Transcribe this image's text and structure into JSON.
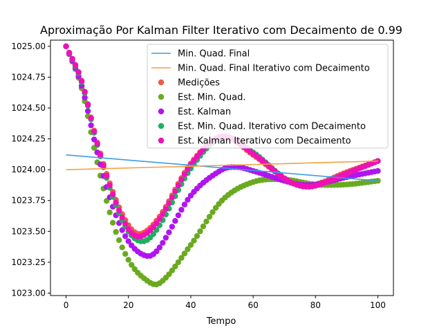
{
  "chart_data": {
    "type": "scatter",
    "title": "Aproximação Por Kalman Filter Iterativo com Decaimento de 0.99",
    "xlabel": "Tempo",
    "ylabel": "",
    "xlim": [
      -5,
      105
    ],
    "ylim": [
      1022.98,
      1025.05
    ],
    "xticks": [
      0,
      20,
      40,
      60,
      80,
      100
    ],
    "yticks": [
      1023.0,
      1023.25,
      1023.5,
      1023.75,
      1024.0,
      1024.25,
      1024.5,
      1024.75,
      1025.0
    ],
    "ytick_labels": [
      "1023.00",
      "1023.25",
      "1023.50",
      "1023.75",
      "1024.00",
      "1024.25",
      "1024.50",
      "1024.75",
      "1025.00"
    ],
    "grid": false,
    "legend_position": "upper right",
    "lines": [
      {
        "name": "Min. Quad. Final",
        "color": "#3a9de8",
        "x": [
          0,
          100
        ],
        "y": [
          1024.12,
          1023.91
        ]
      },
      {
        "name": "Min. Quad. Final Iterativo com Decaimento",
        "color": "#f5a040",
        "x": [
          0,
          100
        ],
        "y": [
          1024.0,
          1024.07
        ]
      }
    ],
    "series": [
      {
        "name": "Medições",
        "color": "#f05a4a",
        "key_x": [
          0,
          5,
          10,
          15,
          20,
          24,
          30,
          40,
          50,
          60,
          70,
          75,
          80,
          90,
          100
        ],
        "key_y": [
          1025.0,
          1024.72,
          1024.22,
          1023.82,
          1023.55,
          1023.48,
          1023.62,
          1024.05,
          1024.27,
          1024.12,
          1023.93,
          1023.88,
          1023.88,
          1023.98,
          1024.07
        ]
      },
      {
        "name": "Est. Min. Quad.",
        "color": "#6aaa20",
        "key_x": [
          0,
          5,
          10,
          15,
          20,
          25,
          30,
          40,
          50,
          60,
          70,
          80,
          90,
          100
        ],
        "key_y": [
          1025.0,
          1024.66,
          1024.06,
          1023.57,
          1023.27,
          1023.12,
          1023.08,
          1023.39,
          1023.75,
          1023.9,
          1023.92,
          1023.88,
          1023.88,
          1023.91
        ]
      },
      {
        "name": "Est. Kalman",
        "color": "#b014f0",
        "key_x": [
          0,
          5,
          10,
          15,
          20,
          26,
          30,
          40,
          50,
          55,
          60,
          70,
          75,
          80,
          90,
          100
        ],
        "key_y": [
          1025.0,
          1024.68,
          1024.14,
          1023.7,
          1023.42,
          1023.3,
          1023.37,
          1023.79,
          1024.0,
          1024.02,
          1023.99,
          1023.91,
          1023.88,
          1023.88,
          1023.94,
          1023.99
        ]
      },
      {
        "name": "Est. Min. Quad. Iterativo com Decaimento",
        "color": "#1db060",
        "key_x": [
          0,
          5,
          10,
          15,
          20,
          25,
          30,
          40,
          50,
          60,
          70,
          75,
          80,
          90,
          100
        ],
        "key_y": [
          1025.0,
          1024.71,
          1024.2,
          1023.78,
          1023.5,
          1023.42,
          1023.55,
          1024.01,
          1024.26,
          1024.14,
          1023.93,
          1023.87,
          1023.87,
          1023.97,
          1024.07
        ]
      },
      {
        "name": "Est. Kalman Iterativo com Decaimento",
        "color": "#f010b8",
        "key_x": [
          0,
          5,
          10,
          15,
          20,
          24,
          30,
          40,
          50,
          60,
          70,
          75,
          80,
          90,
          100
        ],
        "key_y": [
          1025.0,
          1024.72,
          1024.21,
          1023.8,
          1023.52,
          1023.46,
          1023.6,
          1024.04,
          1024.27,
          1024.13,
          1023.93,
          1023.87,
          1023.87,
          1023.97,
          1024.07
        ]
      }
    ]
  }
}
